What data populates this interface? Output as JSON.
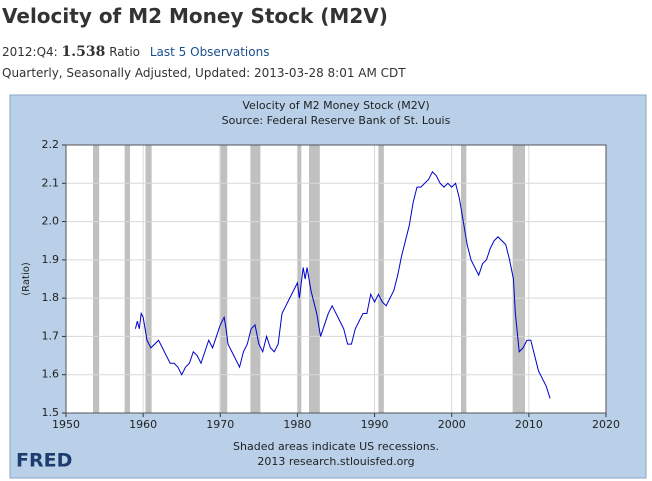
{
  "header": {
    "title": "Velocity of M2 Money Stock (M2V)",
    "period": "2012:Q4:",
    "value": "1.538",
    "unit": "Ratio",
    "link": "Last 5 Observations",
    "meta": "Quarterly, Seasonally Adjusted, Updated: 2013-03-28 8:01 AM CDT"
  },
  "chart_data": {
    "type": "line",
    "title": "Velocity of M2 Money Stock (M2V)",
    "subtitle": "Source: Federal Reserve Bank of St. Louis",
    "ylabel": "(Ratio)",
    "note": "Shaded areas indicate US recessions.",
    "source": "2013 research.stlouisfed.org",
    "logo": "FRED",
    "color": "#0000cc",
    "recession_color": "#c0c0c0",
    "grid": true,
    "xlim": [
      1950,
      2020
    ],
    "xticks": [
      1950,
      1960,
      1970,
      1980,
      1990,
      2000,
      2010,
      2020
    ],
    "ylim": [
      1.5,
      2.2
    ],
    "yticks": [
      2.2,
      2.1,
      {
        "value": 2,
        "label": "2.0"
      },
      1.9,
      1.8,
      1.7,
      1.6,
      1.5
    ],
    "recessions": [
      [
        1953.5,
        1954.3
      ],
      [
        1957.6,
        1958.3
      ],
      [
        1960.3,
        1961.1
      ],
      [
        1969.9,
        1970.9
      ],
      [
        1973.9,
        1975.2
      ],
      [
        1980.0,
        1980.5
      ],
      [
        1981.5,
        1982.9
      ],
      [
        1990.5,
        1991.2
      ],
      [
        2001.2,
        2001.9
      ],
      [
        2007.9,
        2009.5
      ]
    ],
    "x": [
      1959,
      1959.25,
      1959.5,
      1959.75,
      1960,
      1960.5,
      1961,
      1961.5,
      1962,
      1962.5,
      1963,
      1963.5,
      1964,
      1964.5,
      1965,
      1965.5,
      1966,
      1966.5,
      1967,
      1967.5,
      1968,
      1968.5,
      1969,
      1969.5,
      1970,
      1970.5,
      1970.75,
      1971,
      1971.5,
      1972,
      1972.5,
      1973,
      1973.5,
      1974,
      1974.5,
      1975,
      1975.5,
      1976,
      1976.5,
      1977,
      1977.5,
      1978,
      1978.5,
      1979,
      1979.5,
      1980,
      1980.25,
      1980.75,
      1981,
      1981.25,
      1981.75,
      1982,
      1982.5,
      1983,
      1983.5,
      1984,
      1984.5,
      1985,
      1985.5,
      1986,
      1986.5,
      1987,
      1987.5,
      1988,
      1988.5,
      1989,
      1989.5,
      1990,
      1990.5,
      1991,
      1991.5,
      1992,
      1992.5,
      1993,
      1993.5,
      1994,
      1994.5,
      1995,
      1995.5,
      1996,
      1996.5,
      1997,
      1997.5,
      1998,
      1998.5,
      1999,
      1999.5,
      2000,
      2000.5,
      2001,
      2001.5,
      2002,
      2002.5,
      2003,
      2003.5,
      2004,
      2004.5,
      2005,
      2005.5,
      2006,
      2006.5,
      2007,
      2007.5,
      2008,
      2008.25,
      2008.75,
      2009.25,
      2009.75,
      2010.25,
      2010.75,
      2011.25,
      2011.75,
      2012.25,
      2012.75
    ],
    "values": [
      1.72,
      1.74,
      1.72,
      1.76,
      1.75,
      1.69,
      1.67,
      1.68,
      1.69,
      1.67,
      1.65,
      1.63,
      1.63,
      1.62,
      1.6,
      1.62,
      1.63,
      1.66,
      1.65,
      1.63,
      1.66,
      1.69,
      1.67,
      1.7,
      1.73,
      1.75,
      1.72,
      1.68,
      1.66,
      1.64,
      1.62,
      1.66,
      1.68,
      1.72,
      1.73,
      1.68,
      1.66,
      1.7,
      1.67,
      1.66,
      1.68,
      1.76,
      1.78,
      1.8,
      1.82,
      1.84,
      1.8,
      1.88,
      1.85,
      1.88,
      1.82,
      1.8,
      1.76,
      1.7,
      1.73,
      1.76,
      1.78,
      1.76,
      1.74,
      1.72,
      1.68,
      1.68,
      1.72,
      1.74,
      1.76,
      1.76,
      1.81,
      1.79,
      1.81,
      1.79,
      1.78,
      1.8,
      1.82,
      1.86,
      1.91,
      1.95,
      1.99,
      2.05,
      2.09,
      2.09,
      2.1,
      2.11,
      2.13,
      2.12,
      2.1,
      2.09,
      2.1,
      2.09,
      2.1,
      2.06,
      2.0,
      1.94,
      1.9,
      1.88,
      1.86,
      1.89,
      1.9,
      1.93,
      1.95,
      1.96,
      1.95,
      1.94,
      1.9,
      1.85,
      1.76,
      1.66,
      1.67,
      1.69,
      1.69,
      1.65,
      1.61,
      1.59,
      1.57,
      1.538
    ]
  }
}
